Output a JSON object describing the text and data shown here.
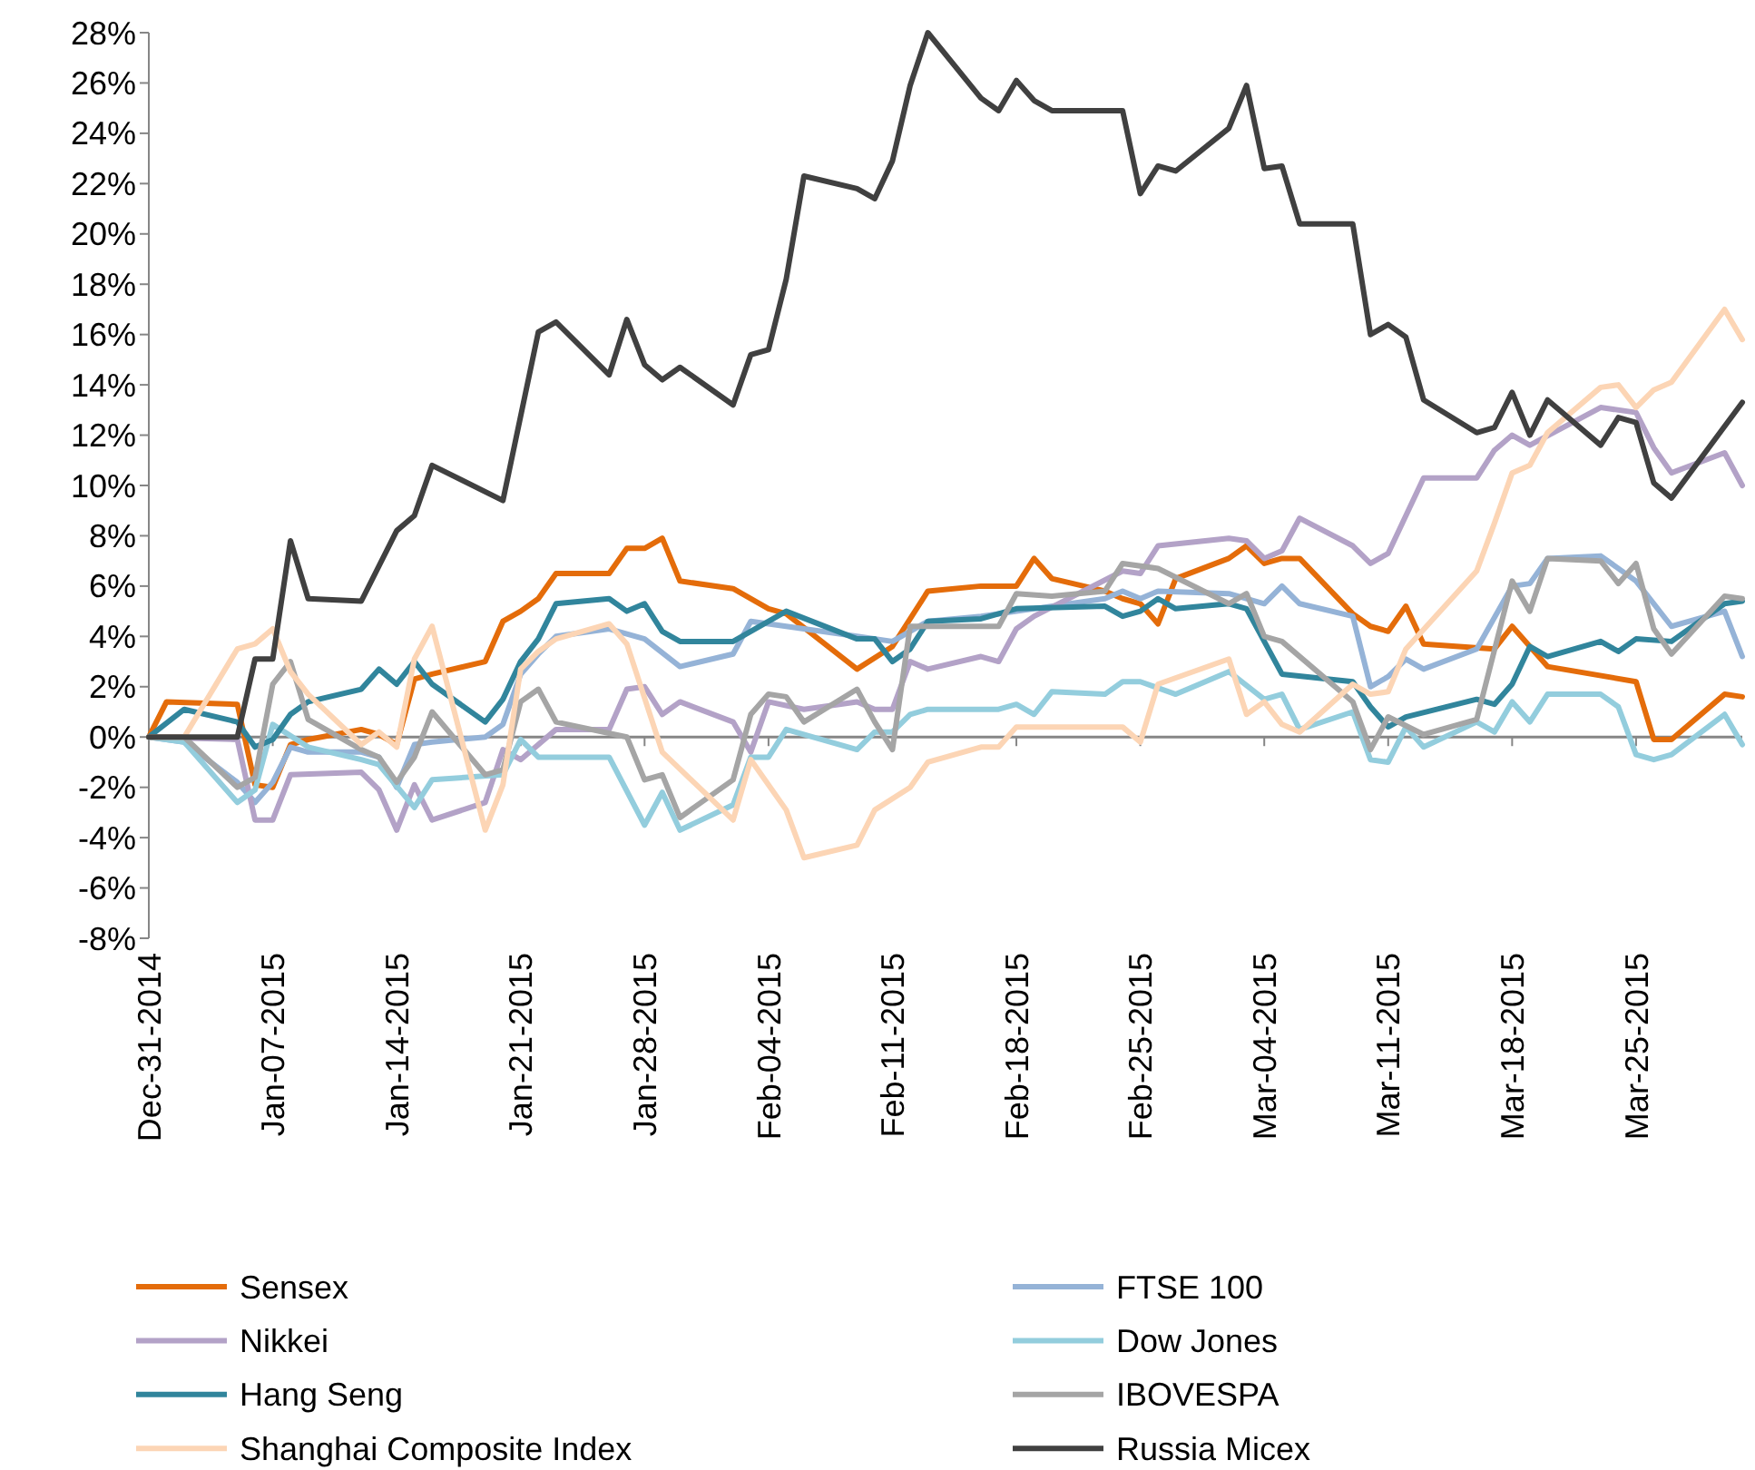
{
  "chart_data": {
    "type": "line",
    "xlim": [
      "2014-12-31",
      "2015-03-31"
    ],
    "xticks": [
      {
        "value": "2014-12-31",
        "label": "Dec-31-2014"
      },
      {
        "value": "2015-01-07",
        "label": "Jan-07-2015"
      },
      {
        "value": "2015-01-14",
        "label": "Jan-14-2015"
      },
      {
        "value": "2015-01-21",
        "label": "Jan-21-2015"
      },
      {
        "value": "2015-01-28",
        "label": "Jan-28-2015"
      },
      {
        "value": "2015-02-04",
        "label": "Feb-04-2015"
      },
      {
        "value": "2015-02-11",
        "label": "Feb-11-2015"
      },
      {
        "value": "2015-02-18",
        "label": "Feb-18-2015"
      },
      {
        "value": "2015-02-25",
        "label": "Feb-25-2015"
      },
      {
        "value": "2015-03-04",
        "label": "Mar-04-2015"
      },
      {
        "value": "2015-03-11",
        "label": "Mar-11-2015"
      },
      {
        "value": "2015-03-18",
        "label": "Mar-18-2015"
      },
      {
        "value": "2015-03-25",
        "label": "Mar-25-2015"
      }
    ],
    "ylim": [
      -8,
      28
    ],
    "yticks": [
      {
        "value": -8,
        "label": "-8%"
      },
      {
        "value": -6,
        "label": "-6%"
      },
      {
        "value": -4,
        "label": "-4%"
      },
      {
        "value": -2,
        "label": "-2%"
      },
      {
        "value": 0,
        "label": "0%"
      },
      {
        "value": 2,
        "label": "2%"
      },
      {
        "value": 4,
        "label": "4%"
      },
      {
        "value": 6,
        "label": "6%"
      },
      {
        "value": 8,
        "label": "8%"
      },
      {
        "value": 10,
        "label": "10%"
      },
      {
        "value": 12,
        "label": "12%"
      },
      {
        "value": 14,
        "label": "14%"
      },
      {
        "value": 16,
        "label": "16%"
      },
      {
        "value": 18,
        "label": "18%"
      },
      {
        "value": 20,
        "label": "20%"
      },
      {
        "value": 22,
        "label": "22%"
      },
      {
        "value": 24,
        "label": "24%"
      },
      {
        "value": 26,
        "label": "26%"
      },
      {
        "value": 28,
        "label": "28%"
      }
    ],
    "legend": "bottom",
    "marker": "none",
    "line_style": "solid",
    "series": [
      {
        "name": "Sensex",
        "color": "#e46c0a",
        "x": [
          "2014-12-31",
          "2015-01-01",
          "2015-01-05",
          "2015-01-06",
          "2015-01-07",
          "2015-01-08",
          "2015-01-09",
          "2015-01-12",
          "2015-01-13",
          "2015-01-14",
          "2015-01-15",
          "2015-01-16",
          "2015-01-19",
          "2015-01-20",
          "2015-01-21",
          "2015-01-22",
          "2015-01-23",
          "2015-01-26",
          "2015-01-27",
          "2015-01-28",
          "2015-01-29",
          "2015-01-30",
          "2015-02-02",
          "2015-02-04",
          "2015-02-05",
          "2015-02-09",
          "2015-02-11",
          "2015-02-13",
          "2015-02-16",
          "2015-02-18",
          "2015-02-19",
          "2015-02-20",
          "2015-02-23",
          "2015-02-24",
          "2015-02-25",
          "2015-02-26",
          "2015-02-27",
          "2015-03-02",
          "2015-03-03",
          "2015-03-04",
          "2015-03-05",
          "2015-03-06",
          "2015-03-09",
          "2015-03-10",
          "2015-03-11",
          "2015-03-12",
          "2015-03-13",
          "2015-03-17",
          "2015-03-18",
          "2015-03-20",
          "2015-03-25",
          "2015-03-26",
          "2015-03-27",
          "2015-03-30",
          "2015-03-31"
        ],
        "values": [
          0,
          1.4,
          1.3,
          -1.9,
          -2.0,
          -0.3,
          -0.1,
          0.3,
          0.1,
          -0.3,
          2.3,
          2.5,
          3.0,
          4.6,
          5.0,
          5.5,
          6.5,
          6.5,
          7.5,
          7.5,
          7.9,
          6.2,
          5.9,
          5.1,
          4.9,
          2.7,
          3.6,
          5.8,
          6.0,
          6.0,
          7.1,
          6.3,
          5.8,
          5.5,
          5.3,
          4.5,
          6.3,
          7.1,
          7.6,
          6.9,
          7.1,
          7.1,
          4.9,
          4.4,
          4.2,
          5.2,
          3.7,
          3.5,
          4.4,
          2.8,
          2.2,
          -0.1,
          -0.1,
          1.7,
          1.6
        ]
      },
      {
        "name": "FTSE 100",
        "color": "#95b3d7",
        "x": [
          "2014-12-31",
          "2015-01-02",
          "2015-01-05",
          "2015-01-06",
          "2015-01-07",
          "2015-01-08",
          "2015-01-09",
          "2015-01-12",
          "2015-01-13",
          "2015-01-14",
          "2015-01-15",
          "2015-01-16",
          "2015-01-19",
          "2015-01-20",
          "2015-01-21",
          "2015-01-22",
          "2015-01-23",
          "2015-01-26",
          "2015-01-28",
          "2015-01-30",
          "2015-02-02",
          "2015-02-03",
          "2015-02-04",
          "2015-02-09",
          "2015-02-11",
          "2015-02-13",
          "2015-02-16",
          "2015-02-18",
          "2015-02-23",
          "2015-02-24",
          "2015-02-25",
          "2015-02-26",
          "2015-03-02",
          "2015-03-04",
          "2015-03-05",
          "2015-03-06",
          "2015-03-09",
          "2015-03-10",
          "2015-03-11",
          "2015-03-12",
          "2015-03-13",
          "2015-03-16",
          "2015-03-18",
          "2015-03-19",
          "2015-03-20",
          "2015-03-23",
          "2015-03-25",
          "2015-03-27",
          "2015-03-30",
          "2015-03-31"
        ],
        "values": [
          0,
          -0.2,
          -1.8,
          -2.6,
          -1.8,
          -0.4,
          -0.6,
          -0.6,
          -0.8,
          -2.0,
          -0.3,
          -0.2,
          0,
          0.5,
          2.5,
          3.3,
          4.0,
          4.3,
          3.9,
          2.8,
          3.3,
          4.6,
          4.5,
          4.0,
          3.8,
          4.6,
          4.8,
          5.0,
          5.5,
          5.8,
          5.5,
          5.8,
          5.7,
          5.3,
          6.0,
          5.3,
          4.8,
          2.0,
          2.4,
          3.1,
          2.7,
          3.5,
          6.0,
          6.1,
          7.1,
          7.2,
          6.2,
          4.4,
          5.0,
          3.2
        ]
      },
      {
        "name": "Nikkei",
        "color": "#b3a2c7",
        "x": [
          "2014-12-31",
          "2015-01-05",
          "2015-01-06",
          "2015-01-07",
          "2015-01-08",
          "2015-01-12",
          "2015-01-13",
          "2015-01-14",
          "2015-01-15",
          "2015-01-16",
          "2015-01-19",
          "2015-01-20",
          "2015-01-21",
          "2015-01-23",
          "2015-01-26",
          "2015-01-27",
          "2015-01-28",
          "2015-01-29",
          "2015-01-30",
          "2015-02-02",
          "2015-02-03",
          "2015-02-04",
          "2015-02-06",
          "2015-02-09",
          "2015-02-10",
          "2015-02-11",
          "2015-02-12",
          "2015-02-13",
          "2015-02-16",
          "2015-02-17",
          "2015-02-18",
          "2015-02-19",
          "2015-02-24",
          "2015-02-25",
          "2015-02-26",
          "2015-03-02",
          "2015-03-03",
          "2015-03-04",
          "2015-03-05",
          "2015-03-06",
          "2015-03-09",
          "2015-03-10",
          "2015-03-11",
          "2015-03-13",
          "2015-03-16",
          "2015-03-17",
          "2015-03-18",
          "2015-03-19",
          "2015-03-23",
          "2015-03-25",
          "2015-03-26",
          "2015-03-27",
          "2015-03-30",
          "2015-03-31"
        ],
        "values": [
          0,
          -0.1,
          -3.3,
          -3.3,
          -1.5,
          -1.4,
          -2.1,
          -3.7,
          -1.9,
          -3.3,
          -2.6,
          -0.5,
          -0.9,
          0.3,
          0.3,
          1.9,
          2.0,
          0.9,
          1.4,
          0.6,
          -0.6,
          1.4,
          1.1,
          1.4,
          1.1,
          1.1,
          3.0,
          2.7,
          3.2,
          3.0,
          4.3,
          4.8,
          6.6,
          6.5,
          7.6,
          7.9,
          7.8,
          7.1,
          7.4,
          8.7,
          7.6,
          6.9,
          7.3,
          10.3,
          10.3,
          11.4,
          12.0,
          11.6,
          13.1,
          12.9,
          11.5,
          10.5,
          11.3,
          10.0
        ]
      },
      {
        "name": "Dow Jones",
        "color": "#93cddd",
        "x": [
          "2014-12-31",
          "2015-01-02",
          "2015-01-05",
          "2015-01-06",
          "2015-01-07",
          "2015-01-09",
          "2015-01-12",
          "2015-01-13",
          "2015-01-15",
          "2015-01-16",
          "2015-01-20",
          "2015-01-21",
          "2015-01-22",
          "2015-01-26",
          "2015-01-28",
          "2015-01-29",
          "2015-01-30",
          "2015-02-02",
          "2015-02-03",
          "2015-02-04",
          "2015-02-05",
          "2015-02-09",
          "2015-02-10",
          "2015-02-11",
          "2015-02-12",
          "2015-02-13",
          "2015-02-17",
          "2015-02-18",
          "2015-02-19",
          "2015-02-20",
          "2015-02-23",
          "2015-02-24",
          "2015-02-25",
          "2015-02-27",
          "2015-03-02",
          "2015-03-04",
          "2015-03-05",
          "2015-03-06",
          "2015-03-09",
          "2015-03-10",
          "2015-03-11",
          "2015-03-12",
          "2015-03-13",
          "2015-03-16",
          "2015-03-17",
          "2015-03-18",
          "2015-03-19",
          "2015-03-20",
          "2015-03-23",
          "2015-03-24",
          "2015-03-25",
          "2015-03-26",
          "2015-03-27",
          "2015-03-30",
          "2015-03-31"
        ],
        "values": [
          0,
          -0.2,
          -2.6,
          -2.1,
          0.5,
          -0.4,
          -0.9,
          -1.1,
          -2.8,
          -1.7,
          -1.5,
          -0.1,
          -0.8,
          -0.8,
          -3.5,
          -2.2,
          -3.7,
          -2.7,
          -0.8,
          -0.8,
          0.3,
          -0.5,
          0.2,
          0.2,
          0.9,
          1.1,
          1.1,
          1.3,
          0.9,
          1.8,
          1.7,
          2.2,
          2.2,
          1.7,
          2.6,
          1.5,
          1.7,
          0.3,
          1.0,
          -0.9,
          -1.0,
          0.4,
          -0.4,
          0.6,
          0.2,
          1.4,
          0.6,
          1.7,
          1.7,
          1.2,
          -0.7,
          -0.9,
          -0.7,
          0.9,
          -0.3
        ]
      },
      {
        "name": "Hang Seng",
        "color": "#31859c",
        "x": [
          "2014-12-31",
          "2015-01-02",
          "2015-01-05",
          "2015-01-06",
          "2015-01-07",
          "2015-01-08",
          "2015-01-09",
          "2015-01-12",
          "2015-01-13",
          "2015-01-14",
          "2015-01-15",
          "2015-01-16",
          "2015-01-19",
          "2015-01-20",
          "2015-01-21",
          "2015-01-22",
          "2015-01-23",
          "2015-01-26",
          "2015-01-27",
          "2015-01-28",
          "2015-01-29",
          "2015-01-30",
          "2015-02-02",
          "2015-02-05",
          "2015-02-09",
          "2015-02-10",
          "2015-02-11",
          "2015-02-12",
          "2015-02-13",
          "2015-02-16",
          "2015-02-18",
          "2015-02-23",
          "2015-02-24",
          "2015-02-25",
          "2015-02-26",
          "2015-02-27",
          "2015-03-02",
          "2015-03-03",
          "2015-03-05",
          "2015-03-09",
          "2015-03-10",
          "2015-03-11",
          "2015-03-12",
          "2015-03-16",
          "2015-03-17",
          "2015-03-18",
          "2015-03-19",
          "2015-03-20",
          "2015-03-23",
          "2015-03-24",
          "2015-03-25",
          "2015-03-27",
          "2015-03-30",
          "2015-03-31"
        ],
        "values": [
          0,
          1.1,
          0.6,
          -0.4,
          -0.1,
          0.9,
          1.4,
          1.9,
          2.7,
          2.1,
          3.0,
          2.1,
          0.6,
          1.5,
          3.0,
          3.9,
          5.3,
          5.5,
          5.0,
          5.3,
          4.2,
          3.8,
          3.8,
          5.0,
          3.9,
          3.9,
          3.0,
          3.5,
          4.6,
          4.7,
          5.1,
          5.2,
          4.8,
          5.0,
          5.5,
          5.1,
          5.3,
          5.1,
          2.5,
          2.2,
          1.2,
          0.4,
          0.8,
          1.5,
          1.3,
          2.1,
          3.6,
          3.2,
          3.8,
          3.4,
          3.9,
          3.8,
          5.3,
          5.4
        ]
      },
      {
        "name": "IBOVESPA",
        "color": "#a5a5a5",
        "x": [
          "2014-12-31",
          "2015-01-02",
          "2015-01-05",
          "2015-01-06",
          "2015-01-07",
          "2015-01-08",
          "2015-01-09",
          "2015-01-12",
          "2015-01-13",
          "2015-01-14",
          "2015-01-15",
          "2015-01-16",
          "2015-01-19",
          "2015-01-20",
          "2015-01-21",
          "2015-01-22",
          "2015-01-23",
          "2015-01-27",
          "2015-01-28",
          "2015-01-29",
          "2015-01-30",
          "2015-02-02",
          "2015-02-03",
          "2015-02-04",
          "2015-02-05",
          "2015-02-06",
          "2015-02-09",
          "2015-02-10",
          "2015-02-11",
          "2015-02-12",
          "2015-02-17",
          "2015-02-18",
          "2015-02-20",
          "2015-02-23",
          "2015-02-24",
          "2015-02-26",
          "2015-03-02",
          "2015-03-03",
          "2015-03-04",
          "2015-03-05",
          "2015-03-09",
          "2015-03-10",
          "2015-03-11",
          "2015-03-13",
          "2015-03-16",
          "2015-03-18",
          "2015-03-19",
          "2015-03-20",
          "2015-03-23",
          "2015-03-24",
          "2015-03-25",
          "2015-03-26",
          "2015-03-27",
          "2015-03-30",
          "2015-03-31"
        ],
        "values": [
          0,
          0,
          -2.0,
          -1.6,
          2.1,
          3.0,
          0.7,
          -0.5,
          -0.8,
          -1.8,
          -0.8,
          1.0,
          -1.5,
          -1.3,
          1.4,
          1.9,
          0.6,
          0,
          -1.7,
          -1.5,
          -3.2,
          -1.7,
          0.9,
          1.7,
          1.6,
          0.6,
          1.9,
          0.6,
          -0.5,
          4.4,
          4.4,
          5.7,
          5.6,
          5.8,
          6.9,
          6.7,
          5.3,
          5.7,
          4.0,
          3.8,
          1.4,
          -0.5,
          0.8,
          0.1,
          0.7,
          6.2,
          5.0,
          7.1,
          7.0,
          6.1,
          6.9,
          4.3,
          3.3,
          5.6,
          5.5
        ]
      },
      {
        "name": "Shanghai Composite Index",
        "color": "#fcd5b5",
        "x": [
          "2014-12-31",
          "2015-01-02",
          "2015-01-05",
          "2015-01-06",
          "2015-01-07",
          "2015-01-08",
          "2015-01-09",
          "2015-01-12",
          "2015-01-13",
          "2015-01-14",
          "2015-01-15",
          "2015-01-16",
          "2015-01-19",
          "2015-01-20",
          "2015-01-21",
          "2015-01-22",
          "2015-01-23",
          "2015-01-26",
          "2015-01-27",
          "2015-01-29",
          "2015-02-02",
          "2015-02-03",
          "2015-02-05",
          "2015-02-06",
          "2015-02-09",
          "2015-02-10",
          "2015-02-12",
          "2015-02-13",
          "2015-02-16",
          "2015-02-17",
          "2015-02-18",
          "2015-02-24",
          "2015-02-25",
          "2015-02-26",
          "2015-03-02",
          "2015-03-03",
          "2015-03-04",
          "2015-03-05",
          "2015-03-06",
          "2015-03-09",
          "2015-03-10",
          "2015-03-11",
          "2015-03-12",
          "2015-03-16",
          "2015-03-17",
          "2015-03-18",
          "2015-03-19",
          "2015-03-20",
          "2015-03-23",
          "2015-03-24",
          "2015-03-25",
          "2015-03-26",
          "2015-03-27",
          "2015-03-30",
          "2015-03-31"
        ],
        "values": [
          0,
          0,
          3.5,
          3.7,
          4.3,
          2.6,
          1.7,
          -0.3,
          0.2,
          -0.4,
          3.1,
          4.4,
          -3.7,
          -1.9,
          2.7,
          3.4,
          3.9,
          4.5,
          3.7,
          -0.6,
          -3.3,
          -0.9,
          -2.9,
          -4.8,
          -4.3,
          -2.9,
          -2.0,
          -1.0,
          -0.4,
          -0.4,
          0.4,
          0.4,
          -0.2,
          2.1,
          3.1,
          0.9,
          1.4,
          0.5,
          0.2,
          2.1,
          1.7,
          1.8,
          3.5,
          6.6,
          8.5,
          10.5,
          10.8,
          12.1,
          13.9,
          14.0,
          13.1,
          13.8,
          14.1,
          17.0,
          15.8
        ]
      },
      {
        "name": "Russia Micex",
        "color": "#404040",
        "x": [
          "2014-12-31",
          "2015-01-05",
          "2015-01-06",
          "2015-01-07",
          "2015-01-08",
          "2015-01-09",
          "2015-01-12",
          "2015-01-14",
          "2015-01-15",
          "2015-01-16",
          "2015-01-20",
          "2015-01-22",
          "2015-01-23",
          "2015-01-26",
          "2015-01-27",
          "2015-01-28",
          "2015-01-29",
          "2015-01-30",
          "2015-02-02",
          "2015-02-03",
          "2015-02-04",
          "2015-02-05",
          "2015-02-06",
          "2015-02-09",
          "2015-02-10",
          "2015-02-11",
          "2015-02-12",
          "2015-02-13",
          "2015-02-16",
          "2015-02-17",
          "2015-02-18",
          "2015-02-19",
          "2015-02-20",
          "2015-02-24",
          "2015-02-25",
          "2015-02-26",
          "2015-02-27",
          "2015-03-02",
          "2015-03-03",
          "2015-03-04",
          "2015-03-05",
          "2015-03-06",
          "2015-03-09",
          "2015-03-10",
          "2015-03-11",
          "2015-03-12",
          "2015-03-13",
          "2015-03-16",
          "2015-03-17",
          "2015-03-18",
          "2015-03-19",
          "2015-03-20",
          "2015-03-23",
          "2015-03-24",
          "2015-03-25",
          "2015-03-26",
          "2015-03-27",
          "2015-03-31"
        ],
        "values": [
          0,
          0,
          3.1,
          3.1,
          7.8,
          5.5,
          5.4,
          8.2,
          8.8,
          10.8,
          9.4,
          16.1,
          16.5,
          14.4,
          16.6,
          14.8,
          14.2,
          14.7,
          13.2,
          15.2,
          15.4,
          18.2,
          22.3,
          21.8,
          21.4,
          22.9,
          25.9,
          28.0,
          25.4,
          24.9,
          26.1,
          25.3,
          24.9,
          24.9,
          21.6,
          22.7,
          22.5,
          24.2,
          25.9,
          22.6,
          22.7,
          20.4,
          20.4,
          16.0,
          16.4,
          15.9,
          13.4,
          12.1,
          12.3,
          13.7,
          12.0,
          13.4,
          11.6,
          12.7,
          12.5,
          10.1,
          9.5,
          13.3
        ]
      }
    ]
  }
}
